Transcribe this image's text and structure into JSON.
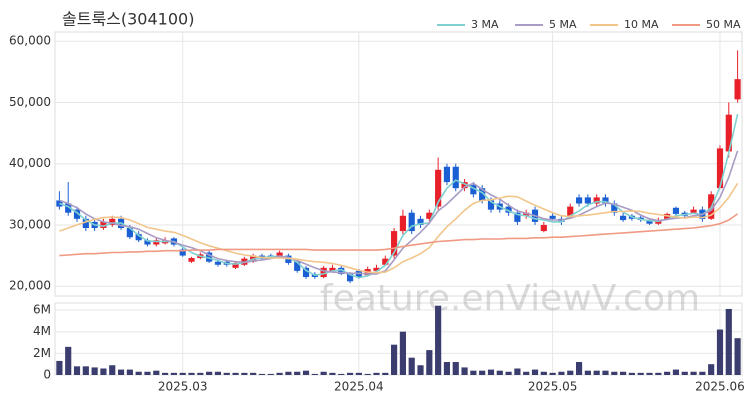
{
  "chart_data": [
    {
      "type": "candlestick",
      "title": "솔트룩스(304100)",
      "watermark": "feature.enViewV.com",
      "up_color": "#e8202a",
      "down_color": "#1b5fd4",
      "grid": true,
      "legend": "top-right",
      "ylim": [
        18400,
        61500
      ],
      "yticks": [
        {
          "value": 20000,
          "label": "20,000"
        },
        {
          "value": 30000,
          "label": "30,000"
        },
        {
          "value": 40000,
          "label": "40,000"
        },
        {
          "value": 50000,
          "label": "50,000"
        },
        {
          "value": 60000,
          "label": "60,000"
        }
      ],
      "open": [
        34000,
        33500,
        32500,
        31000,
        30500,
        29500,
        30000,
        31000,
        29500,
        28500,
        27500,
        26800,
        27000,
        27800,
        26000,
        24000,
        24600,
        25500,
        24000,
        24000,
        23000,
        23500,
        24000,
        25000,
        25000,
        24800,
        25000,
        24000,
        23000,
        22000,
        21500,
        22500,
        23000,
        22000,
        22500,
        21800,
        22500,
        23500,
        25000,
        29000,
        32000,
        31000,
        31000,
        33000,
        39500,
        39500,
        36000,
        36500,
        36000,
        34000,
        33500,
        33000,
        32000,
        31500,
        32500,
        29000,
        31500,
        31000,
        31500,
        34500,
        34500,
        33500,
        34500,
        33500,
        31500,
        31500,
        31200,
        30800,
        30200,
        31000,
        32800,
        32000,
        32000,
        32500,
        31000,
        36000,
        42000,
        50500
      ],
      "high": [
        35500,
        37000,
        33000,
        31500,
        31000,
        31000,
        31500,
        31500,
        30000,
        29000,
        27800,
        27800,
        28000,
        28000,
        26300,
        24800,
        25500,
        25800,
        24300,
        24300,
        24000,
        24800,
        25300,
        25300,
        25300,
        25800,
        25300,
        24300,
        23300,
        22300,
        23300,
        23500,
        23300,
        22300,
        22800,
        23200,
        23500,
        25000,
        29500,
        32500,
        32500,
        31500,
        32500,
        41000,
        40000,
        40000,
        37500,
        37000,
        36500,
        34500,
        34000,
        33500,
        32500,
        32500,
        33000,
        30500,
        32000,
        31500,
        33500,
        35000,
        35000,
        35000,
        35000,
        34000,
        32000,
        31800,
        31500,
        31000,
        31200,
        32000,
        33000,
        32300,
        33000,
        33000,
        35500,
        43000,
        50000,
        58500
      ],
      "low": [
        32500,
        31500,
        30500,
        29000,
        29000,
        29200,
        29700,
        29200,
        27700,
        27200,
        26500,
        26500,
        26800,
        26500,
        24800,
        23800,
        24400,
        23800,
        23200,
        23200,
        22800,
        23300,
        23800,
        24200,
        24500,
        24600,
        23500,
        22200,
        21200,
        21200,
        21300,
        22300,
        21800,
        20500,
        21200,
        21600,
        22300,
        23300,
        24500,
        28500,
        28500,
        29500,
        30500,
        32500,
        36500,
        35500,
        35500,
        34500,
        33500,
        32000,
        32000,
        31500,
        30000,
        31000,
        30000,
        28800,
        30800,
        30000,
        31000,
        33000,
        33000,
        33000,
        33000,
        31500,
        30500,
        30700,
        30500,
        30000,
        30000,
        30800,
        31500,
        31300,
        31800,
        30500,
        30800,
        36000,
        41000,
        50000
      ],
      "close": [
        33000,
        32000,
        31000,
        29500,
        29500,
        30500,
        31000,
        29500,
        28000,
        27500,
        26800,
        27500,
        27500,
        26800,
        25000,
        24600,
        25200,
        24000,
        23500,
        23500,
        23800,
        24500,
        25000,
        24500,
        24800,
        25500,
        23800,
        22500,
        21500,
        21500,
        23000,
        23000,
        22000,
        20800,
        21500,
        22800,
        23000,
        24500,
        29000,
        31500,
        29000,
        30000,
        32000,
        39000,
        37000,
        36000,
        37000,
        35000,
        34000,
        32500,
        32500,
        32000,
        30500,
        32000,
        30500,
        30000,
        31000,
        30500,
        33000,
        33500,
        33500,
        34500,
        33500,
        32000,
        30800,
        31000,
        30800,
        30200,
        30800,
        31800,
        31800,
        31500,
        32500,
        31000,
        35000,
        42500,
        48000,
        53800
      ],
      "series": [
        {
          "name": "3 MA",
          "color": "#7fd1d1",
          "values": [
            33500,
            33000,
            32000,
            30800,
            30000,
            29800,
            30300,
            30300,
            29500,
            28300,
            27400,
            27300,
            27300,
            27300,
            26400,
            25500,
            24900,
            24600,
            24200,
            23700,
            23600,
            23900,
            24400,
            24700,
            24800,
            24900,
            24700,
            23900,
            22600,
            21800,
            22000,
            22500,
            22700,
            21900,
            21400,
            21700,
            22400,
            23400,
            25500,
            28300,
            29800,
            30200,
            30300,
            33700,
            36000,
            37300,
            36700,
            36000,
            35300,
            33800,
            33000,
            32300,
            31700,
            31500,
            31000,
            30800,
            30500,
            30500,
            31500,
            32300,
            33300,
            33800,
            33800,
            33300,
            32100,
            31300,
            30900,
            30700,
            30600,
            30900,
            31500,
            31700,
            31900,
            31700,
            32800,
            36200,
            41800,
            48100
          ]
        },
        {
          "name": "5 MA",
          "color": "#a89bc4",
          "values": [
            34000,
            33500,
            32800,
            31800,
            31000,
            30500,
            30300,
            29900,
            29700,
            29300,
            28600,
            27900,
            27500,
            27200,
            26700,
            26300,
            25800,
            25100,
            24500,
            24200,
            24000,
            23900,
            24100,
            24300,
            24500,
            24900,
            24700,
            24200,
            23600,
            23000,
            22500,
            22300,
            22200,
            22100,
            22100,
            22000,
            22000,
            22500,
            24300,
            26200,
            27500,
            28800,
            30300,
            32300,
            33400,
            34800,
            36200,
            36800,
            35800,
            34900,
            34200,
            33200,
            32300,
            31900,
            31500,
            31000,
            30800,
            30800,
            31100,
            31600,
            32300,
            33000,
            33600,
            33400,
            32900,
            32400,
            31600,
            31000,
            30700,
            30900,
            31100,
            31200,
            31500,
            31700,
            32400,
            34500,
            37800,
            42100
          ]
        },
        {
          "name": "10 MA",
          "color": "#f2c58a",
          "values": [
            29000,
            29500,
            30000,
            30500,
            30900,
            31200,
            31300,
            31200,
            30800,
            30200,
            29600,
            29300,
            29000,
            28800,
            28300,
            27700,
            27100,
            26600,
            26200,
            25800,
            25400,
            25100,
            24900,
            24700,
            24600,
            24600,
            24500,
            24400,
            24200,
            24000,
            23900,
            23700,
            23400,
            23000,
            22600,
            22300,
            22200,
            22300,
            23000,
            24000,
            24600,
            25300,
            26300,
            28100,
            29700,
            31000,
            32400,
            33500,
            34000,
            34100,
            34400,
            34700,
            34600,
            33900,
            33200,
            32600,
            32000,
            31500,
            31400,
            31500,
            31600,
            31800,
            32000,
            32200,
            32200,
            32300,
            32200,
            31900,
            31700,
            31500,
            31300,
            31100,
            31300,
            31200,
            31600,
            32800,
            34500,
            36800
          ]
        },
        {
          "name": "50 MA",
          "color": "#f09a84",
          "values": [
            25000,
            25100,
            25200,
            25300,
            25300,
            25400,
            25500,
            25500,
            25600,
            25600,
            25700,
            25700,
            25800,
            25800,
            25800,
            25900,
            25900,
            25900,
            26000,
            26000,
            26000,
            26000,
            26000,
            26000,
            26000,
            26000,
            26000,
            26000,
            26000,
            25900,
            25900,
            25900,
            25900,
            25900,
            25900,
            25900,
            25900,
            26000,
            26200,
            26500,
            26700,
            26900,
            27100,
            27300,
            27400,
            27500,
            27600,
            27600,
            27700,
            27700,
            27700,
            27800,
            27800,
            27800,
            27900,
            27900,
            28000,
            28000,
            28100,
            28200,
            28300,
            28400,
            28500,
            28600,
            28700,
            28800,
            28900,
            29000,
            29100,
            29200,
            29300,
            29400,
            29500,
            29700,
            29900,
            30200,
            30800,
            31800
          ]
        }
      ]
    },
    {
      "type": "bar",
      "color": "#3b3d6e",
      "grid": true,
      "ylim": [
        0,
        6650000
      ],
      "yticks": [
        0,
        {
          "value": 2000000,
          "label": "2M"
        },
        {
          "value": 4000000,
          "label": "4M"
        },
        {
          "value": 6000000,
          "label": "6M"
        }
      ],
      "categories": [
        null,
        null,
        null,
        null,
        null,
        null,
        null,
        null,
        null,
        null,
        null,
        null,
        null,
        null,
        "2025.03",
        null,
        null,
        null,
        null,
        null,
        null,
        null,
        null,
        null,
        null,
        null,
        null,
        null,
        null,
        null,
        null,
        null,
        null,
        null,
        "2025.04",
        null,
        null,
        null,
        null,
        null,
        null,
        null,
        null,
        null,
        null,
        null,
        null,
        null,
        null,
        null,
        null,
        null,
        null,
        null,
        null,
        null,
        "2025.05",
        null,
        null,
        null,
        null,
        null,
        null,
        null,
        null,
        null,
        null,
        null,
        null,
        null,
        null,
        null,
        null,
        null,
        null,
        "2025.06",
        null,
        null
      ],
      "values": [
        1300000,
        2600000,
        800000,
        800000,
        700000,
        600000,
        900000,
        500000,
        500000,
        300000,
        300000,
        400000,
        200000,
        200000,
        200000,
        200000,
        200000,
        300000,
        300000,
        200000,
        200000,
        200000,
        200000,
        100000,
        100000,
        200000,
        300000,
        300000,
        400000,
        100000,
        300000,
        200000,
        100000,
        200000,
        200000,
        100000,
        200000,
        200000,
        2800000,
        4000000,
        1600000,
        900000,
        2300000,
        6400000,
        1200000,
        1200000,
        700000,
        400000,
        400000,
        500000,
        400000,
        300000,
        600000,
        300000,
        500000,
        300000,
        200000,
        300000,
        400000,
        1200000,
        400000,
        400000,
        400000,
        300000,
        300000,
        200000,
        200000,
        200000,
        200000,
        300000,
        500000,
        300000,
        300000,
        300000,
        1000000,
        4200000,
        6100000,
        3400000
      ]
    }
  ]
}
